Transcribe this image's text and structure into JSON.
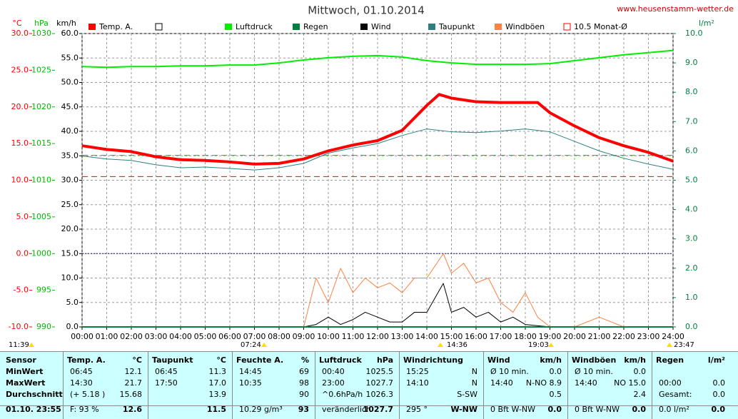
{
  "chart_data": {
    "type": "line",
    "title": "Mittwoch, 01.10.2014",
    "source": "www.heusenstamm-wetter.de",
    "axis_labels": {
      "temp": "°C",
      "hpa": "hPa",
      "kmh": "km/h",
      "y2": "l/m²"
    },
    "xlim": [
      0,
      24
    ],
    "xticks": [
      {
        "value": 0,
        "label": "00:00"
      },
      {
        "value": 1,
        "label": "01:00"
      },
      {
        "value": 2,
        "label": "02:00"
      },
      {
        "value": 3,
        "label": "03:00"
      },
      {
        "value": 4,
        "label": "04:00"
      },
      {
        "value": 5,
        "label": "05:00"
      },
      {
        "value": 6,
        "label": "06:00"
      },
      {
        "value": 7,
        "label": "07:00"
      },
      {
        "value": 8,
        "label": "08:00"
      },
      {
        "value": 9,
        "label": "09:00"
      },
      {
        "value": 10,
        "label": "10:00"
      },
      {
        "value": 11,
        "label": "11:00"
      },
      {
        "value": 12,
        "label": "12:00"
      },
      {
        "value": 13,
        "label": "13:00"
      },
      {
        "value": 14,
        "label": "14:00"
      },
      {
        "value": 15,
        "label": "15:00"
      },
      {
        "value": 16,
        "label": "16:00"
      },
      {
        "value": 17,
        "label": "17:00"
      },
      {
        "value": 18,
        "label": "18:00"
      },
      {
        "value": 19,
        "label": "19:00"
      },
      {
        "value": 20,
        "label": "20:00"
      },
      {
        "value": 21,
        "label": "21:00"
      },
      {
        "value": 22,
        "label": "22:00"
      },
      {
        "value": 23,
        "label": "23:00"
      },
      {
        "value": 24,
        "label": "24:00"
      }
    ],
    "ylim": [
      -10,
      30
    ],
    "yticks": [
      {
        "value": 30,
        "label": "30.0"
      },
      {
        "value": 25,
        "label": "25.0"
      },
      {
        "value": 20,
        "label": "20.0"
      },
      {
        "value": 15,
        "label": "15.0"
      },
      {
        "value": 10,
        "label": "10.0"
      },
      {
        "value": 5,
        "label": "5.0"
      },
      {
        "value": 0,
        "label": "0.0"
      },
      {
        "value": -5,
        "label": "-5.0"
      },
      {
        "value": -10,
        "label": "-10.0"
      }
    ],
    "hpa_lim": [
      990,
      1030
    ],
    "hpa_ticks": [
      1030,
      1025,
      1020,
      1015,
      1010,
      1005,
      1000,
      995,
      990
    ],
    "kmh_lim": [
      0,
      60
    ],
    "kmh_ticks": [
      {
        "value": 60,
        "label": "60.0"
      },
      {
        "value": 55,
        "label": "55.0"
      },
      {
        "value": 50,
        "label": "50.0"
      },
      {
        "value": 45,
        "label": "45.0"
      },
      {
        "value": 40,
        "label": "40.0"
      },
      {
        "value": 35,
        "label": "35.0"
      },
      {
        "value": 30,
        "label": "30.0"
      },
      {
        "value": 25,
        "label": "25.0"
      },
      {
        "value": 20,
        "label": "20.0"
      },
      {
        "value": 15,
        "label": "15.0"
      },
      {
        "value": 10,
        "label": "10.0"
      },
      {
        "value": 5,
        "label": "5.0"
      },
      {
        "value": 0,
        "label": "0.0"
      }
    ],
    "y2lim": [
      0,
      10
    ],
    "y2ticks": [
      {
        "value": 10,
        "label": "10.0"
      },
      {
        "value": 9,
        "label": "9.0"
      },
      {
        "value": 8,
        "label": "8.0"
      },
      {
        "value": 7,
        "label": "7.0"
      },
      {
        "value": 6,
        "label": "6.0"
      },
      {
        "value": 5,
        "label": "5.0"
      },
      {
        "value": 4,
        "label": "4.0"
      },
      {
        "value": 3,
        "label": "3.0"
      },
      {
        "value": 2,
        "label": "2.0"
      },
      {
        "value": 1,
        "label": "1.0"
      },
      {
        "value": 0,
        "label": "0.0"
      }
    ],
    "grid": true,
    "series": [
      {
        "name": "Temp. A.",
        "color": "#ff0000",
        "width": 4,
        "axis": "temp",
        "x": [
          0,
          1,
          2,
          3,
          4,
          5,
          6,
          7,
          8,
          9,
          10,
          11,
          12,
          13,
          14,
          14.5,
          15,
          16,
          17,
          18,
          18.5,
          19,
          20,
          21,
          22,
          23,
          24
        ],
        "values": [
          14.7,
          14.2,
          13.9,
          13.2,
          12.8,
          12.7,
          12.5,
          12.2,
          12.3,
          12.9,
          14.0,
          14.8,
          15.4,
          16.8,
          20.2,
          21.7,
          21.2,
          20.7,
          20.6,
          20.6,
          20.6,
          19.2,
          17.4,
          15.8,
          14.7,
          13.8,
          12.6
        ]
      },
      {
        "name": "Luftdruck",
        "color": "#00ee00",
        "width": 2,
        "axis": "hpa",
        "x": [
          0,
          1,
          2,
          3,
          4,
          5,
          6,
          7,
          8,
          9,
          10,
          11,
          12,
          13,
          14,
          15,
          16,
          17,
          18,
          19,
          20,
          21,
          22,
          23,
          24
        ],
        "values": [
          1025.5,
          1025.4,
          1025.5,
          1025.5,
          1025.6,
          1025.6,
          1025.7,
          1025.7,
          1026.0,
          1026.4,
          1026.7,
          1026.9,
          1027.0,
          1026.8,
          1026.3,
          1026.0,
          1025.8,
          1025.8,
          1025.8,
          1025.9,
          1026.3,
          1026.7,
          1027.1,
          1027.4,
          1027.7
        ]
      },
      {
        "name": "Regen",
        "color": "#008040",
        "width": 2,
        "axis": "y2",
        "x": [
          0,
          24
        ],
        "values": [
          0,
          0
        ]
      },
      {
        "name": "Wind",
        "color": "#000000",
        "width": 1,
        "axis": "kmh",
        "x": [
          0,
          9,
          9.5,
          10,
          10.5,
          11,
          11.5,
          12,
          12.5,
          13,
          13.5,
          14,
          14.67,
          15,
          15.5,
          16,
          16.5,
          17,
          17.5,
          18,
          19,
          24
        ],
        "values": [
          0,
          0,
          0.5,
          2,
          0.5,
          1.5,
          3,
          2,
          1,
          1,
          3,
          3,
          8.9,
          3,
          4,
          2,
          3,
          1,
          2,
          0.5,
          0,
          0
        ]
      },
      {
        "name": "Taupunkt",
        "color": "#2f7f7f",
        "width": 1,
        "axis": "temp",
        "x": [
          0,
          1,
          2,
          3,
          4,
          5,
          6,
          7,
          8,
          9,
          10,
          11,
          12,
          13,
          14,
          15,
          16,
          17,
          18,
          19,
          20,
          21,
          22,
          23,
          24
        ],
        "values": [
          13.3,
          12.9,
          12.7,
          12.1,
          11.7,
          11.8,
          11.6,
          11.4,
          11.7,
          12.3,
          13.7,
          14.4,
          15.0,
          16.1,
          17.0,
          16.6,
          16.5,
          16.7,
          17.0,
          16.6,
          15.3,
          14.0,
          13.0,
          12.2,
          11.5
        ]
      },
      {
        "name": "Windböen",
        "color": "#ff8040",
        "width": 1,
        "axis": "kmh",
        "x": [
          0,
          9,
          9.5,
          10,
          10.5,
          11,
          11.5,
          12,
          12.5,
          13,
          13.5,
          14,
          14.67,
          15,
          15.5,
          16,
          16.5,
          17,
          17.5,
          18,
          18.5,
          19,
          20,
          21,
          22,
          23,
          24
        ],
        "values": [
          0,
          0,
          10,
          5,
          12,
          7,
          10,
          8,
          9,
          7,
          10,
          10,
          15.0,
          11,
          13,
          9,
          10,
          5,
          3,
          7,
          2,
          0,
          0,
          2,
          0,
          0,
          0
        ]
      }
    ],
    "reference_lines": [
      {
        "name": "10.5 Monat-Ø",
        "axis": "temp",
        "value": 10.5,
        "color": "#ff0000",
        "style": "dashed"
      },
      {
        "axis": "hpa",
        "value": 1013.4,
        "color": "#00cc00",
        "style": "dashed"
      },
      {
        "axis": "temp",
        "value": 0,
        "color": "#0000ff",
        "style": "dotted"
      }
    ],
    "annotations": [
      "11:39",
      "07:24",
      "14:36",
      "19:03",
      "23:47"
    ]
  },
  "table": {
    "sensor": {
      "title": "Sensor",
      "rows": [
        "MinWert",
        "MaxWert",
        "Durchschnitt",
        "01.10. 23:55"
      ]
    },
    "columns": [
      {
        "title": "Temp. A.",
        "unit": "°C",
        "rows": [
          [
            "06:45",
            "12.1"
          ],
          [
            "14:30",
            "21.7"
          ],
          [
            "(+ 5.18 )",
            "15.68"
          ],
          [
            "F: 93 %",
            "12.6"
          ]
        ]
      },
      {
        "title": "Taupunkt",
        "unit": "°C",
        "rows": [
          [
            "06:45",
            "11.3"
          ],
          [
            "17:50",
            "17.0"
          ],
          [
            "13.9"
          ],
          [
            "11.5"
          ]
        ]
      },
      {
        "title": "Feuchte A.",
        "unit": "%",
        "rows": [
          [
            "14:45",
            "69"
          ],
          [
            "10:35",
            "98"
          ],
          [
            "90"
          ],
          [
            "10.29 g/m³",
            "93"
          ]
        ]
      },
      {
        "title": "Luftdruck",
        "unit": "hPa",
        "rows": [
          [
            "00:40",
            "1025.5"
          ],
          [
            "23:00",
            "1027.7"
          ],
          [
            "^0.6hPa/h",
            "1026.3"
          ],
          [
            "veränderlich",
            "1027.7"
          ]
        ]
      },
      {
        "title": "Windrichtung",
        "rows": [
          [
            "15:25",
            "N"
          ],
          [
            "14:10",
            "N"
          ],
          [
            "S-SW"
          ],
          [
            "295 °",
            "W-NW"
          ]
        ]
      },
      {
        "title": "Wind",
        "unit": "km/h",
        "rows": [
          [
            "Ø 10 min.",
            "0.0"
          ],
          [
            "14:40",
            "N-NO 8.9"
          ],
          [
            "0.5"
          ],
          [
            "0 Bft W-NW",
            "0.0"
          ]
        ]
      },
      {
        "title": "Windböen",
        "unit": "km/h",
        "rows": [
          [
            "Ø 10 min.",
            "0.0"
          ],
          [
            "14:40",
            "NO 15.0"
          ],
          [
            "2.4"
          ],
          [
            "0 Bft W-NW",
            "0.0"
          ]
        ]
      },
      {
        "title": "Regen",
        "unit": "l/m²",
        "rows": [
          [],
          [
            "00:00",
            "0.0"
          ],
          [
            "Gesamt:",
            "0.0"
          ],
          [
            "0.0 l/m²",
            "0.0"
          ]
        ]
      }
    ]
  }
}
